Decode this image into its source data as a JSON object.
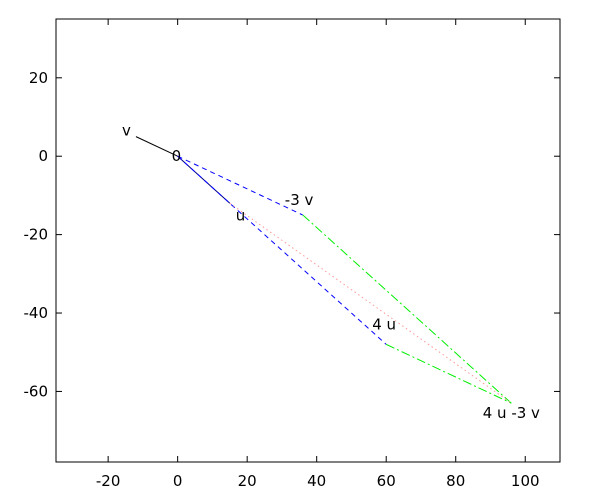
{
  "chart_data": {
    "type": "line",
    "xlim": [
      -35,
      110
    ],
    "ylim": [
      -78,
      35
    ],
    "x_ticks": [
      -20,
      0,
      20,
      40,
      60,
      80,
      100
    ],
    "y_ticks": [
      20,
      0,
      -20,
      -40,
      -60
    ],
    "grid": false,
    "legend": "none",
    "points": [
      {
        "label": "0",
        "x": 0,
        "y": 0
      },
      {
        "label": "v",
        "x": -12,
        "y": 5
      },
      {
        "label": "u",
        "x": 15,
        "y": -12
      },
      {
        "label": "-3 v",
        "x": 36,
        "y": -15
      },
      {
        "label": "4 u",
        "x": 60,
        "y": -48
      },
      {
        "label": "4 u -3 v",
        "x": 96,
        "y": -63
      }
    ],
    "segments": [
      {
        "from": [
          0,
          0
        ],
        "to": [
          -12,
          5
        ],
        "color": "#000000",
        "style": "solid"
      },
      {
        "from": [
          0,
          0
        ],
        "to": [
          15,
          -12
        ],
        "color": "#000080",
        "style": "solid"
      },
      {
        "from": [
          0,
          0
        ],
        "to": [
          36,
          -15
        ],
        "color": "#0000ff",
        "style": "dashed"
      },
      {
        "from": [
          0,
          0
        ],
        "to": [
          60,
          -48
        ],
        "color": "#0000ff",
        "style": "dashed"
      },
      {
        "from": [
          36,
          -15
        ],
        "to": [
          96,
          -63
        ],
        "color": "#00ee00",
        "style": "dashdot"
      },
      {
        "from": [
          60,
          -48
        ],
        "to": [
          96,
          -63
        ],
        "color": "#00ee00",
        "style": "dashdot"
      },
      {
        "from": [
          15,
          -12
        ],
        "to": [
          96,
          -63
        ],
        "color": "#ff9999",
        "style": "dotted"
      }
    ]
  }
}
